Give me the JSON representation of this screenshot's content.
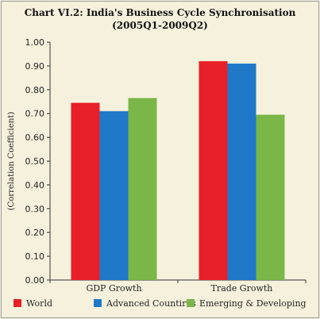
{
  "chart_data": {
    "type": "bar",
    "title": "Chart VI.2: India's Business Cycle Synchronisation",
    "subtitle": "(2005Q1-2009Q2)",
    "ylabel": "(Correlation Coefficient)",
    "xlabel": "",
    "categories": [
      "GDP Growth",
      "Trade Growth"
    ],
    "series": [
      {
        "name": "World",
        "color": "#e8202a",
        "values": [
          0.745,
          0.92
        ]
      },
      {
        "name": "Advanced Countires",
        "color": "#1f78c8",
        "values": [
          0.71,
          0.91
        ]
      },
      {
        "name": "Emerging & Developing",
        "color": "#7ab648",
        "values": [
          0.765,
          0.695
        ]
      }
    ],
    "ylim": [
      0,
      1.0
    ],
    "yticks": [
      "0.00",
      "0.10",
      "0.20",
      "0.30",
      "0.40",
      "0.50",
      "0.60",
      "0.70",
      "0.80",
      "0.90",
      "1.00"
    ],
    "grid": false,
    "legend_position": "bottom"
  }
}
